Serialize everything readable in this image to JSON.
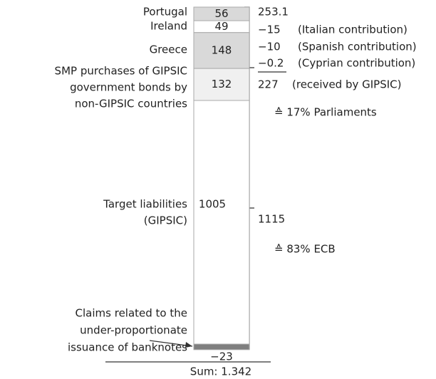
{
  "chart_data": {
    "type": "stacked_bar",
    "segments": [
      {
        "name": [
          "Portugal"
        ],
        "value": 56,
        "color": "#d9d9d9"
      },
      {
        "name": [
          "Ireland"
        ],
        "value": 49,
        "color": "#ffffff"
      },
      {
        "name": [
          "Greece"
        ],
        "value": 148,
        "color": "#d9d9d9"
      },
      {
        "name": [
          "SMP purchases of GIPSIC",
          "government bonds by",
          "non-GIPSIC countries"
        ],
        "value": 132,
        "color": "#f0f0f0"
      },
      {
        "name": [
          "Target liabilities",
          "(GIPSIC)"
        ],
        "value": 1005,
        "color": "#ffffff"
      },
      {
        "name": [
          "Claims related to the",
          "under-proportionate",
          "issuance of banknotes"
        ],
        "value": -23,
        "value_label": "−23",
        "color": "#7f7f7f"
      }
    ],
    "total_label": "Sum: 1.342",
    "annotations": [
      {
        "amount": "253.1"
      },
      {
        "amount": "−15",
        "note": "(Italian contribution)"
      },
      {
        "amount": "−10",
        "note": "(Spanish contribution)"
      },
      {
        "amount": "−0.2",
        "note": "(Cyprian contribution)"
      },
      {
        "amount": "227",
        "note": "(received by GIPSIC)"
      },
      {
        "amount": "≙ 17% Parliaments"
      },
      {
        "amount": "1115"
      },
      {
        "amount": "≙ 83% ECB"
      }
    ]
  }
}
